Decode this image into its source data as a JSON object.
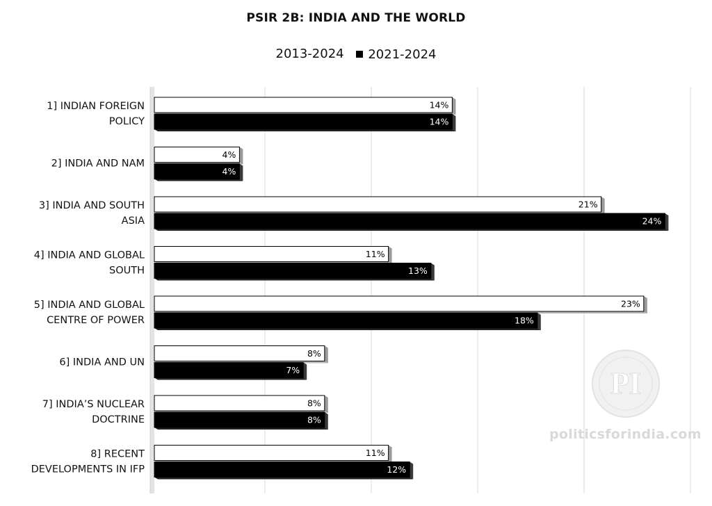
{
  "chart_data": {
    "type": "bar",
    "orientation": "horizontal",
    "title": "PSIR 2B: INDIA AND THE WORLD",
    "categories": [
      [
        "1] INDIAN FOREIGN",
        "POLICY"
      ],
      [
        "2] INDIA AND NAM"
      ],
      [
        "3] INDIA AND SOUTH",
        "ASIA"
      ],
      [
        "4] INDIA AND GLOBAL",
        "SOUTH"
      ],
      [
        "5] INDIA AND GLOBAL",
        "CENTRE OF POWER"
      ],
      [
        "6] INDIA AND UN"
      ],
      [
        "7] INDIA’S NUCLEAR",
        "DOCTRINE"
      ],
      [
        "8] RECENT",
        "DEVELOPMENTS IN IFP"
      ]
    ],
    "series": [
      {
        "name": "2013-2024",
        "color": "#ffffff",
        "stroke": "#000000",
        "text_color": "#000000",
        "values": [
          14,
          4,
          21,
          11,
          23,
          8,
          8,
          11
        ]
      },
      {
        "name": "2021-2024",
        "color": "#000000",
        "stroke": "#000000",
        "text_color": "#ffffff",
        "values": [
          14,
          4,
          24,
          13,
          18,
          7,
          8,
          12
        ]
      }
    ],
    "value_suffix": "%",
    "xlim": [
      0,
      25
    ],
    "legend_position": "top",
    "grid": "vertical",
    "data_labels": true
  },
  "watermark": {
    "text": "politicsforindia.com",
    "logo_text": "PI"
  }
}
